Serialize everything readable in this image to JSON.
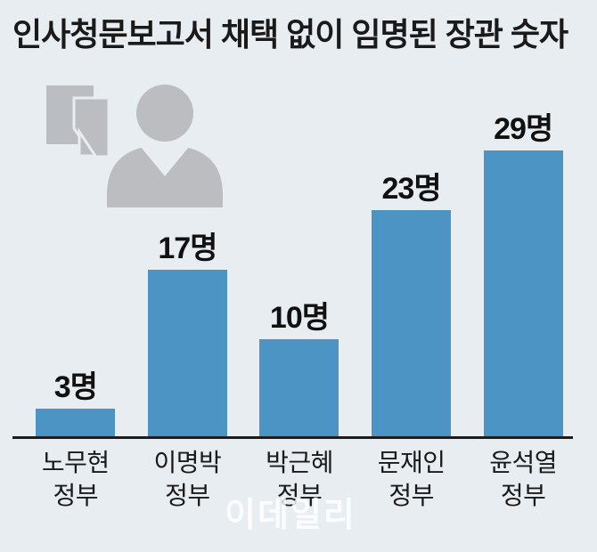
{
  "title": "인사청문보고서 채택 없이 임명된 장관 숫자",
  "watermark": "이데일리",
  "icons": [
    "documents-icon",
    "person-icon"
  ],
  "colors": {
    "background": "#e8edf1",
    "bar": "#4b94c4",
    "icon_gray": "#bbbdc1",
    "text": "#1a1a1a",
    "axis_line": "#1c1c1e",
    "watermark": "rgba(255,255,255,0.82)"
  },
  "chart_data": {
    "type": "bar",
    "title": "인사청문보고서 채택 없이 임명된 장관 숫자",
    "categories": [
      "노무현 정부",
      "이명박 정부",
      "박근혜 정부",
      "문재인 정부",
      "윤석열 정부"
    ],
    "category_lines": [
      [
        "노무현",
        "정부"
      ],
      [
        "이명박",
        "정부"
      ],
      [
        "박근혜",
        "정부"
      ],
      [
        "문재인",
        "정부"
      ],
      [
        "윤석열",
        "정부"
      ]
    ],
    "values": [
      3,
      17,
      10,
      23,
      29
    ],
    "value_labels": [
      "3명",
      "17명",
      "10명",
      "23명",
      "29명"
    ],
    "unit": "명",
    "xlabel": "",
    "ylabel": "",
    "ylim": [
      0,
      29
    ],
    "grid": false,
    "legend": false,
    "bar_color": "#4b94c4"
  }
}
